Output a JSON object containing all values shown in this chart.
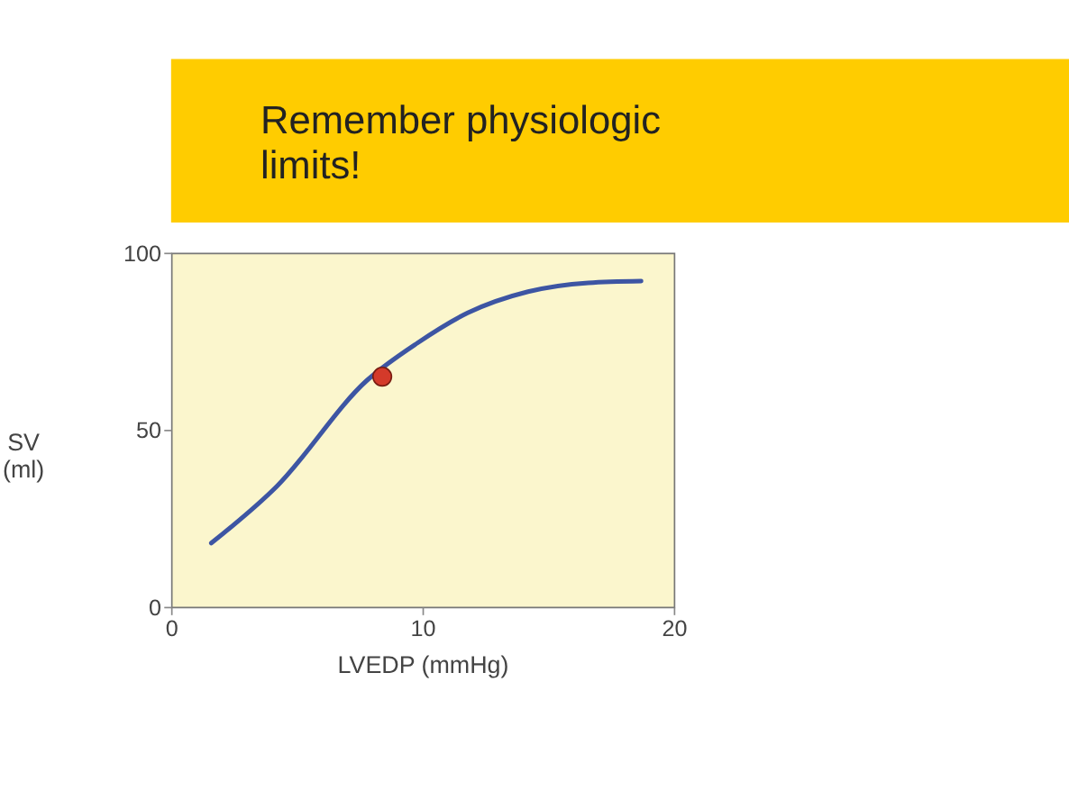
{
  "chart_data": {
    "type": "line",
    "title": "Remember physiologic limits!",
    "xlabel": "LVEDP (mmHg)",
    "ylabel": "SV (ml)",
    "xlim": [
      0,
      20
    ],
    "xticks": [
      0,
      10,
      20
    ],
    "ylim": [
      0,
      100
    ],
    "yticks": [
      0,
      50,
      100
    ],
    "grid": false,
    "series": [
      {
        "color": "#3d55a3",
        "marker": "none",
        "x": [
          1.6,
          4.2,
          7.8,
          9.8,
          11.8,
          14.2,
          16.6,
          18.7
        ],
        "values": [
          18,
          34,
          64,
          74.5,
          83,
          89,
          91.5,
          92
        ]
      },
      {
        "type": "scatter",
        "color": "#d43a2a",
        "marker": "circle",
        "x": [
          8.4
        ],
        "values": [
          65
        ]
      }
    ]
  }
}
